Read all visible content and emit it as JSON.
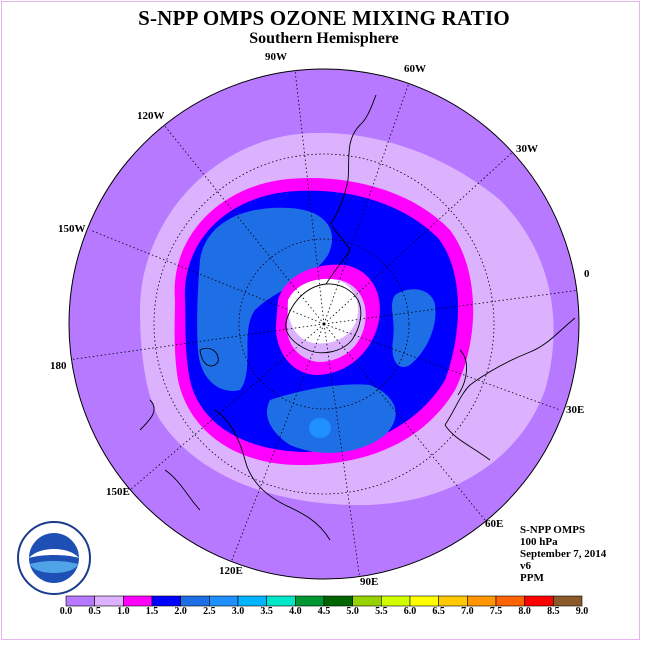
{
  "title": "S-NPP OMPS OZONE MIXING RATIO",
  "subtitle": "Southern Hemisphere",
  "longitude_labels": {
    "lon_90w": "90W",
    "lon_60w": "60W",
    "lon_30w": "30W",
    "lon_0": "0",
    "lon_30e": "30E",
    "lon_60e": "60E",
    "lon_90e": "90E",
    "lon_120e": "120E",
    "lon_150e": "150E",
    "lon_180": "180",
    "lon_150w": "150W",
    "lon_120w": "120W"
  },
  "info": {
    "instrument": "S-NPP OMPS",
    "level": "100 hPa",
    "date": "September 7, 2014",
    "version": "v6",
    "units": "PPM"
  },
  "logo": {
    "text": "NOAA",
    "ring_text": "NATIONAL OCEANIC AND ATMOSPHERIC ADMINISTRATION · U.S. DEPARTMENT OF COMMERCE"
  },
  "colorbar": {
    "ticks": [
      "0.0",
      "0.5",
      "1.0",
      "1.5",
      "2.0",
      "2.5",
      "3.0",
      "3.5",
      "4.0",
      "4.5",
      "5.0",
      "5.5",
      "6.0",
      "6.5",
      "7.0",
      "7.5",
      "8.0",
      "8.5",
      "9.0"
    ],
    "colors": [
      "#b779ff",
      "#dcb2ff",
      "#ff00ff",
      "#0000ff",
      "#1e6ee6",
      "#1e90ff",
      "#00b4ff",
      "#00e6c8",
      "#009632",
      "#006400",
      "#96d200",
      "#d2ff00",
      "#ffff00",
      "#ffc800",
      "#ff9600",
      "#ff6400",
      "#ff0000",
      "#8b5a2b"
    ]
  },
  "colors": {
    "level_0_0_5": "#b779ff",
    "level_0_5_1_0": "#dcb2ff",
    "level_1_0_1_5": "#ff00ff",
    "level_1_5_2_0": "#0000ff",
    "level_2_0_2_5": "#1e6ee6",
    "level_2_5_3_0": "#1e90ff",
    "no_data": "#ffffff"
  }
}
